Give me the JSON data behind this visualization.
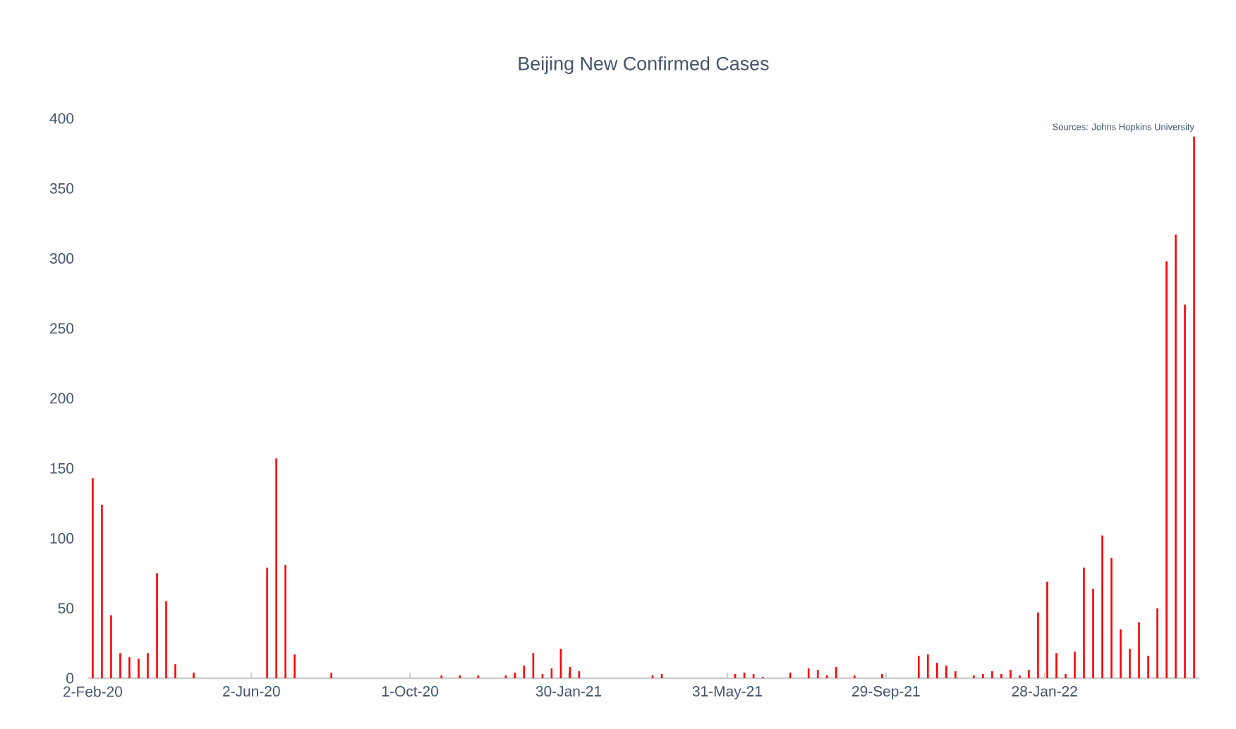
{
  "chart_data": {
    "type": "bar",
    "title": "Beijing New Confirmed Cases",
    "annotations": [
      "Sources:  Johns Hopkins University"
    ],
    "x": [
      "2020-02-02",
      "2020-02-09",
      "2020-02-16",
      "2020-02-23",
      "2020-03-01",
      "2020-03-08",
      "2020-03-15",
      "2020-03-22",
      "2020-03-29",
      "2020-04-05",
      "2020-04-12",
      "2020-04-19",
      "2020-04-26",
      "2020-05-03",
      "2020-05-10",
      "2020-05-17",
      "2020-05-24",
      "2020-05-31",
      "2020-06-07",
      "2020-06-14",
      "2020-06-21",
      "2020-06-28",
      "2020-07-05",
      "2020-07-12",
      "2020-07-19",
      "2020-07-26",
      "2020-08-02",
      "2020-08-09",
      "2020-08-16",
      "2020-08-23",
      "2020-08-30",
      "2020-09-06",
      "2020-09-13",
      "2020-09-20",
      "2020-09-27",
      "2020-10-04",
      "2020-10-11",
      "2020-10-18",
      "2020-10-25",
      "2020-11-01",
      "2020-11-08",
      "2020-11-15",
      "2020-11-22",
      "2020-11-29",
      "2020-12-06",
      "2020-12-13",
      "2020-12-20",
      "2020-12-27",
      "2021-01-03",
      "2021-01-10",
      "2021-01-17",
      "2021-01-24",
      "2021-01-31",
      "2021-02-07",
      "2021-02-14",
      "2021-02-21",
      "2021-02-28",
      "2021-03-07",
      "2021-03-14",
      "2021-03-21",
      "2021-03-28",
      "2021-04-04",
      "2021-04-11",
      "2021-04-18",
      "2021-04-25",
      "2021-05-02",
      "2021-05-09",
      "2021-05-16",
      "2021-05-23",
      "2021-05-30",
      "2021-06-06",
      "2021-06-13",
      "2021-06-20",
      "2021-06-27",
      "2021-07-04",
      "2021-07-11",
      "2021-07-18",
      "2021-07-25",
      "2021-08-01",
      "2021-08-08",
      "2021-08-15",
      "2021-08-22",
      "2021-08-29",
      "2021-09-05",
      "2021-09-12",
      "2021-09-19",
      "2021-09-26",
      "2021-10-03",
      "2021-10-10",
      "2021-10-17",
      "2021-10-24",
      "2021-10-31",
      "2021-11-07",
      "2021-11-14",
      "2021-11-21",
      "2021-11-28",
      "2021-12-05",
      "2021-12-12",
      "2021-12-19",
      "2021-12-26",
      "2022-01-02",
      "2022-01-09",
      "2022-01-16",
      "2022-01-23",
      "2022-01-30",
      "2022-02-06",
      "2022-02-13",
      "2022-02-20",
      "2022-02-27",
      "2022-03-06",
      "2022-03-13",
      "2022-03-20",
      "2022-03-27",
      "2022-04-03",
      "2022-04-10",
      "2022-04-17",
      "2022-04-24",
      "2022-05-01",
      "2022-05-08",
      "2022-05-15",
      "2022-05-22"
    ],
    "values": [
      143,
      124,
      45,
      18,
      15,
      14,
      18,
      75,
      55,
      10,
      0,
      4,
      0,
      0,
      0,
      0,
      0,
      0,
      0,
      79,
      157,
      81,
      17,
      0,
      0,
      0,
      4,
      0,
      0,
      0,
      0,
      0,
      0,
      0,
      0,
      0,
      0,
      0,
      2,
      0,
      2,
      0,
      2,
      0,
      0,
      2,
      4,
      9,
      18,
      3,
      7,
      21,
      8,
      5,
      0,
      0,
      0,
      0,
      0,
      0,
      0,
      2,
      3,
      0,
      0,
      0,
      0,
      0,
      0,
      0,
      3,
      4,
      3,
      1,
      0,
      0,
      4,
      0,
      7,
      6,
      2,
      8,
      0,
      2,
      0,
      0,
      3,
      0,
      0,
      0,
      16,
      17,
      11,
      9,
      5,
      0,
      2,
      3,
      5,
      3,
      6,
      2,
      6,
      47,
      69,
      18,
      3,
      19,
      79,
      64,
      102,
      86,
      35,
      21,
      40,
      16,
      50,
      298,
      317,
      267,
      387
    ],
    "color": "#ff0000",
    "xlim": [
      "2020-01-29",
      "2022-05-26"
    ],
    "xticks": [
      {
        "value": "2020-02-02",
        "label": "2-Feb-20"
      },
      {
        "value": "2020-06-02",
        "label": "2-Jun-20"
      },
      {
        "value": "2020-10-01",
        "label": "1-Oct-20"
      },
      {
        "value": "2021-01-30",
        "label": "30-Jan-21"
      },
      {
        "value": "2021-05-31",
        "label": "31-May-21"
      },
      {
        "value": "2021-09-29",
        "label": "29-Sep-21"
      },
      {
        "value": "2022-01-28",
        "label": "28-Jan-22"
      }
    ],
    "ylim": [
      0,
      400
    ],
    "yticks": [
      0,
      50,
      100,
      150,
      200,
      250,
      300,
      350,
      400
    ]
  }
}
